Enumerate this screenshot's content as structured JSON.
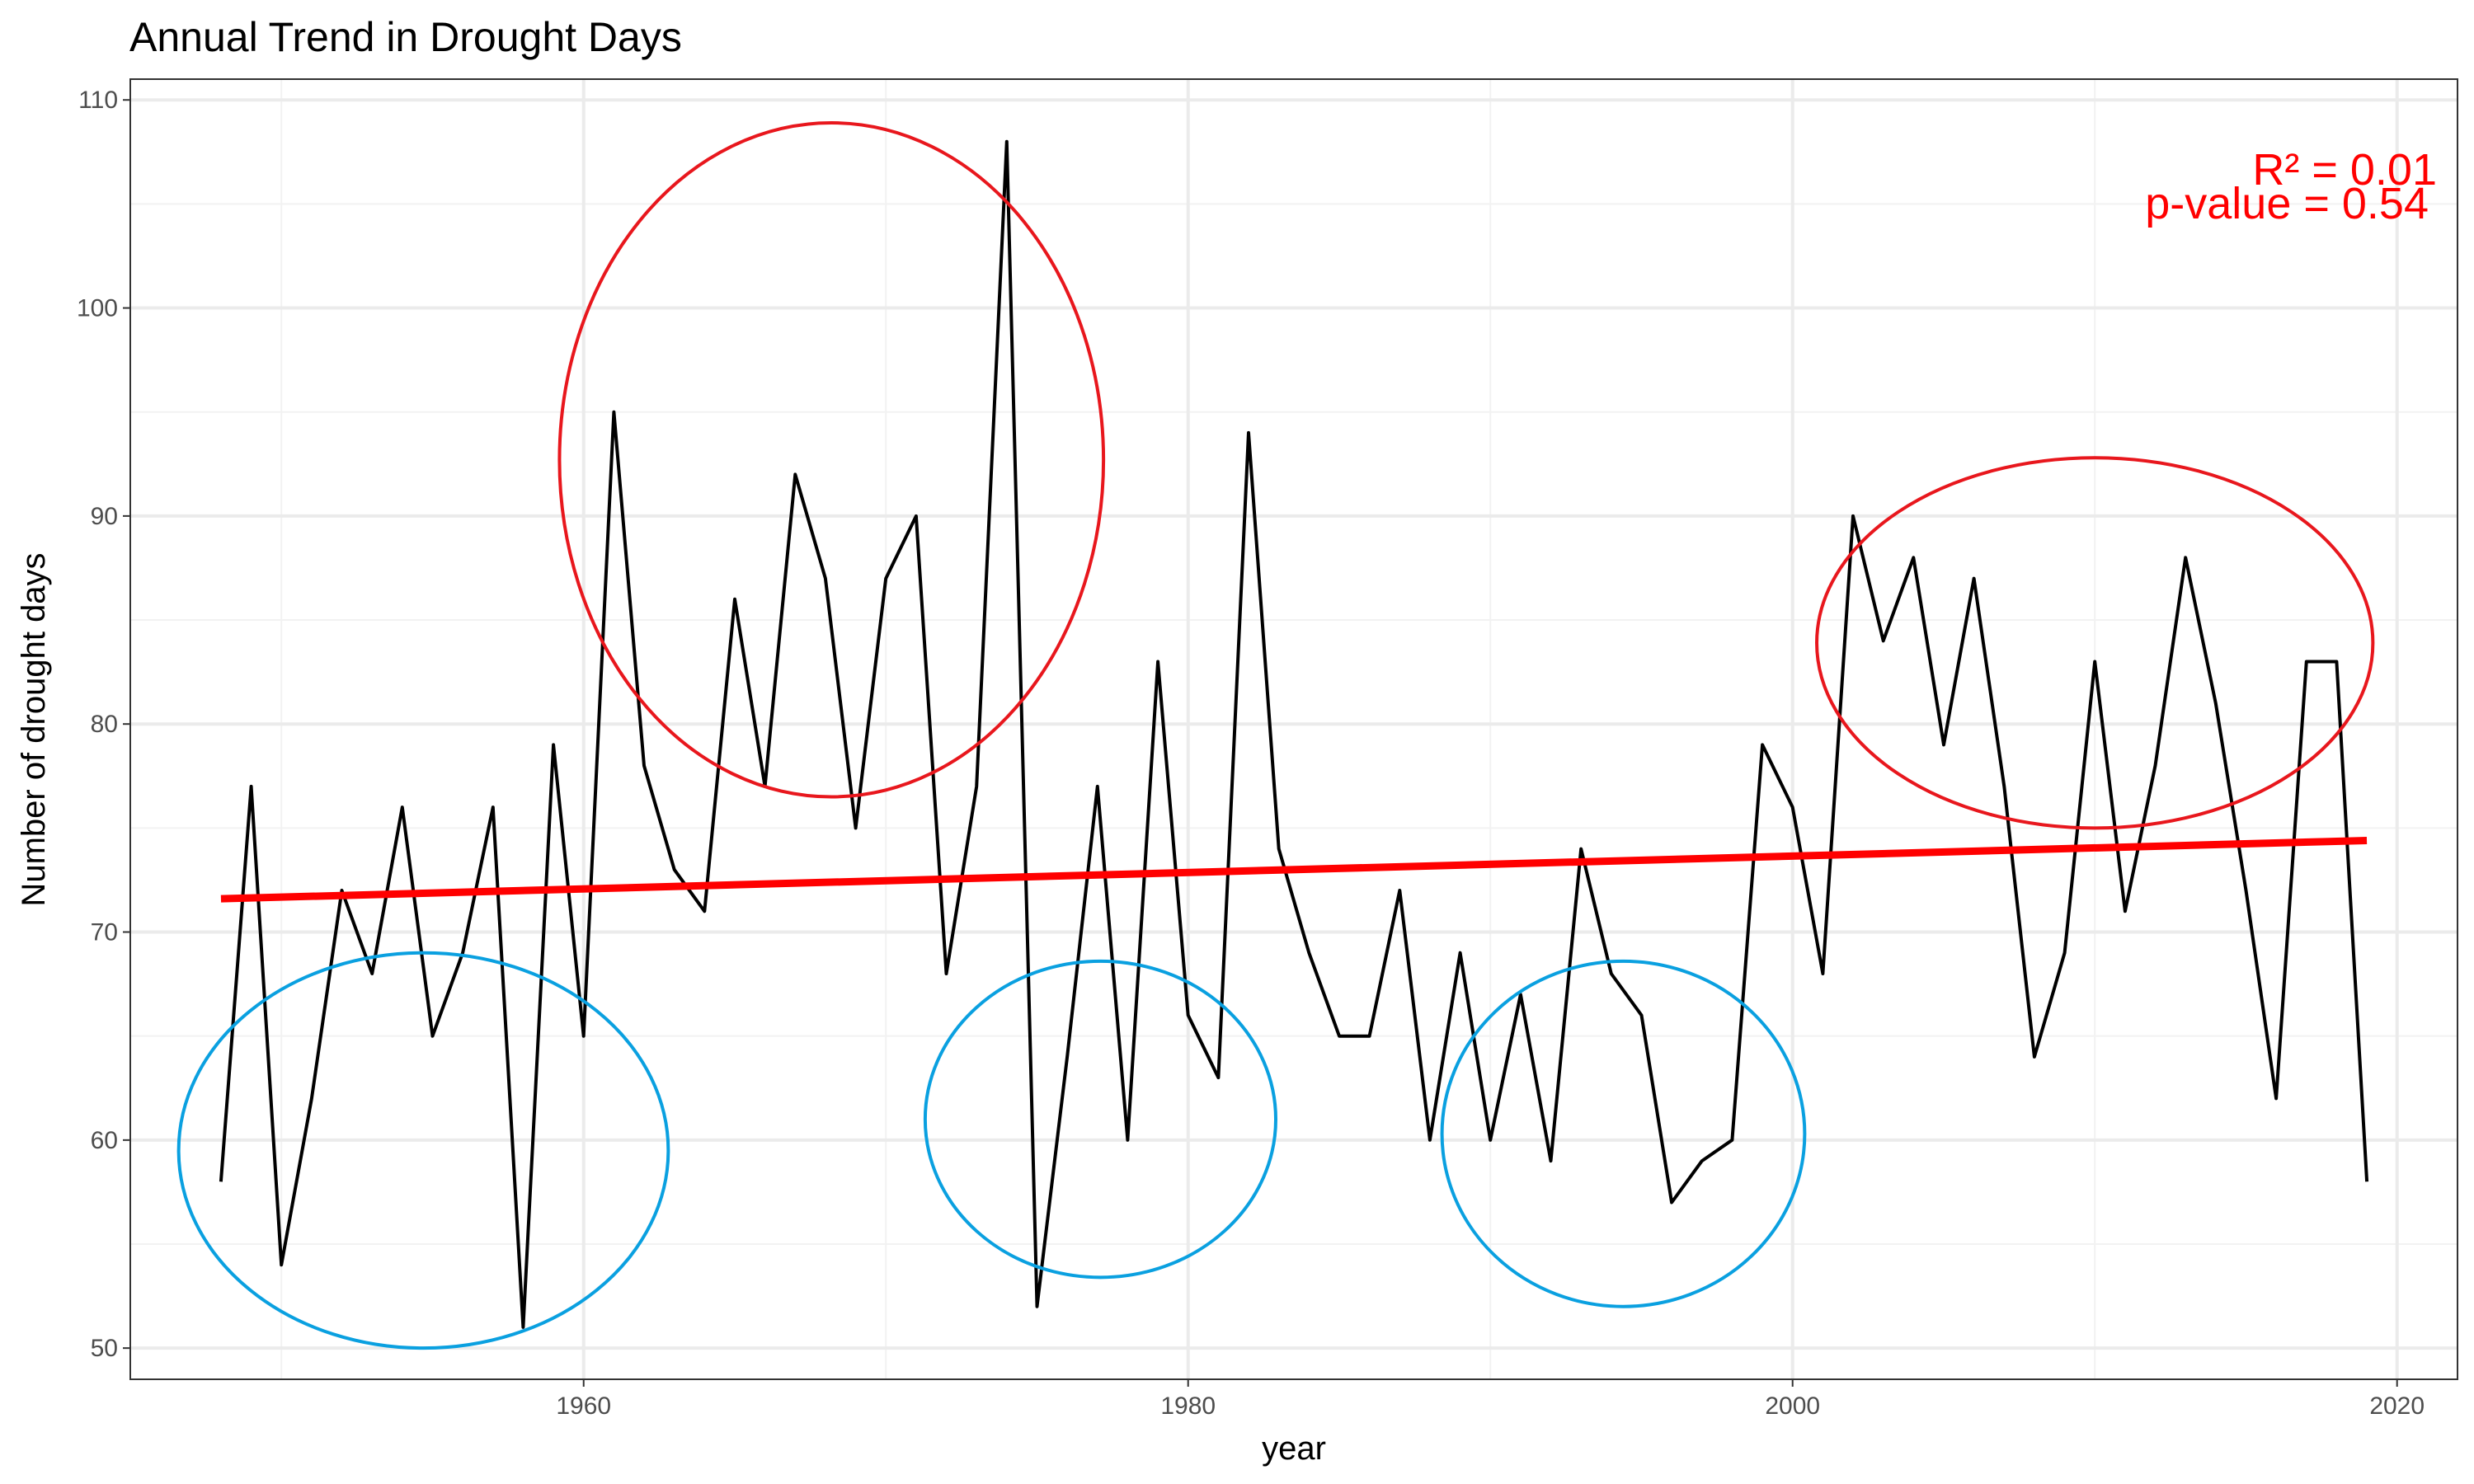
{
  "chart_data": {
    "type": "line",
    "title": "Annual Trend in Drought Days",
    "xlabel": "year",
    "ylabel": "Number of drought days",
    "xlim": [
      1945,
      2022
    ],
    "ylim": [
      48.5,
      111
    ],
    "grid": true,
    "x_ticks": [
      1960,
      1980,
      2000,
      2020
    ],
    "y_ticks": [
      50,
      60,
      70,
      80,
      90,
      100,
      110
    ],
    "series": [
      {
        "color": "#000000",
        "x": [
          1948,
          1949,
          1950,
          1951,
          1952,
          1953,
          1954,
          1955,
          1956,
          1957,
          1958,
          1959,
          1960,
          1961,
          1962,
          1963,
          1964,
          1965,
          1966,
          1967,
          1968,
          1969,
          1970,
          1971,
          1972,
          1973,
          1974,
          1975,
          1976,
          1977,
          1978,
          1979,
          1980,
          1981,
          1982,
          1983,
          1984,
          1985,
          1986,
          1987,
          1988,
          1989,
          1990,
          1991,
          1992,
          1993,
          1994,
          1995,
          1996,
          1997,
          1998,
          1999,
          2000,
          2001,
          2002,
          2003,
          2004,
          2005,
          2006,
          2007,
          2008,
          2009,
          2010,
          2011,
          2012,
          2013,
          2014,
          2015,
          2016,
          2017,
          2018,
          2019
        ],
        "values": [
          58,
          77,
          54,
          62,
          72,
          68,
          76,
          65,
          69,
          76,
          51,
          79,
          65,
          95,
          78,
          73,
          71,
          86,
          77,
          92,
          87,
          75,
          87,
          90,
          68,
          77,
          108,
          52,
          64,
          77,
          60,
          83,
          66,
          63,
          94,
          74,
          69,
          65,
          65,
          72,
          60,
          69,
          60,
          67,
          59,
          74,
          68,
          66,
          57,
          59,
          60,
          79,
          76,
          68,
          90,
          84,
          88,
          79,
          87,
          77,
          64,
          69,
          83,
          71,
          78,
          88,
          81,
          72,
          62,
          83,
          83,
          58
        ]
      }
    ],
    "trend_line": {
      "color": "#ff0000",
      "x": [
        1948,
        2019
      ],
      "values": [
        71.6,
        74.4
      ]
    },
    "annotations": {
      "r_squared": "R² =  0.01",
      "p_value": "p-value =  0.54",
      "color": "#ff0000"
    },
    "highlights": [
      {
        "color": "#e8171d",
        "center_x": 1968.2,
        "center_y": 92.7,
        "radius_x": 9.0,
        "radius_y": 16.2
      },
      {
        "color": "#e8171d",
        "center_x": 2010.0,
        "center_y": 83.9,
        "radius_x": 9.2,
        "radius_y": 8.9
      },
      {
        "color": "#0aa0e0",
        "center_x": 1954.7,
        "center_y": 59.5,
        "radius_x": 8.1,
        "radius_y": 9.5
      },
      {
        "color": "#0aa0e0",
        "center_x": 1977.1,
        "center_y": 61.0,
        "radius_x": 5.8,
        "radius_y": 7.6
      },
      {
        "color": "#0aa0e0",
        "center_x": 1994.4,
        "center_y": 60.3,
        "radius_x": 6.0,
        "radius_y": 8.3
      }
    ]
  }
}
